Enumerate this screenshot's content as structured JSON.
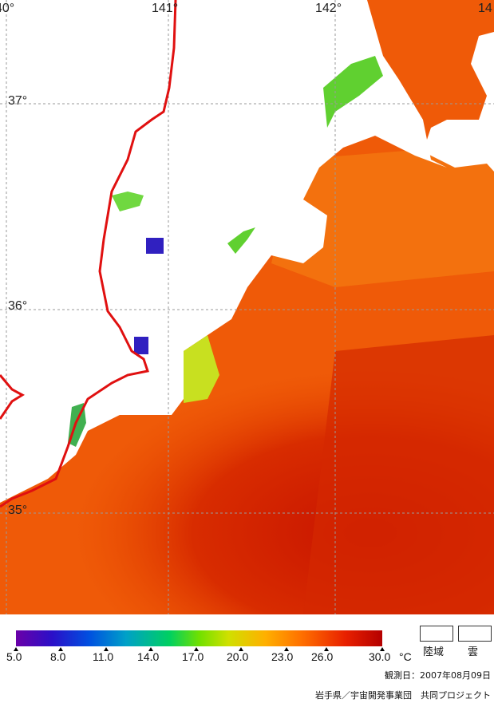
{
  "map": {
    "longitude_labels": [
      "40°",
      "141°",
      "142°",
      "14"
    ],
    "latitude_labels": [
      "37°",
      "36°",
      "35°"
    ],
    "coastline_color": "#e01010",
    "gridline_style": "dashed grey"
  },
  "legend": {
    "ticks": [
      "5.0",
      "8.0",
      "11.0",
      "14.0",
      "17.0",
      "20.0",
      "23.0",
      "26.0",
      "30.0"
    ],
    "unit": "°C",
    "colors": [
      "#6a00a8",
      "#0050e0",
      "#00d060",
      "#70e000",
      "#ffb000",
      "#ff7000",
      "#b40000"
    ]
  },
  "key": {
    "land_label": "陸域",
    "cloud_label": "雲"
  },
  "observation_date": "観測日：2007年08月09日",
  "credit": "岩手県／宇宙開発事業団　共同プロジェクト"
}
